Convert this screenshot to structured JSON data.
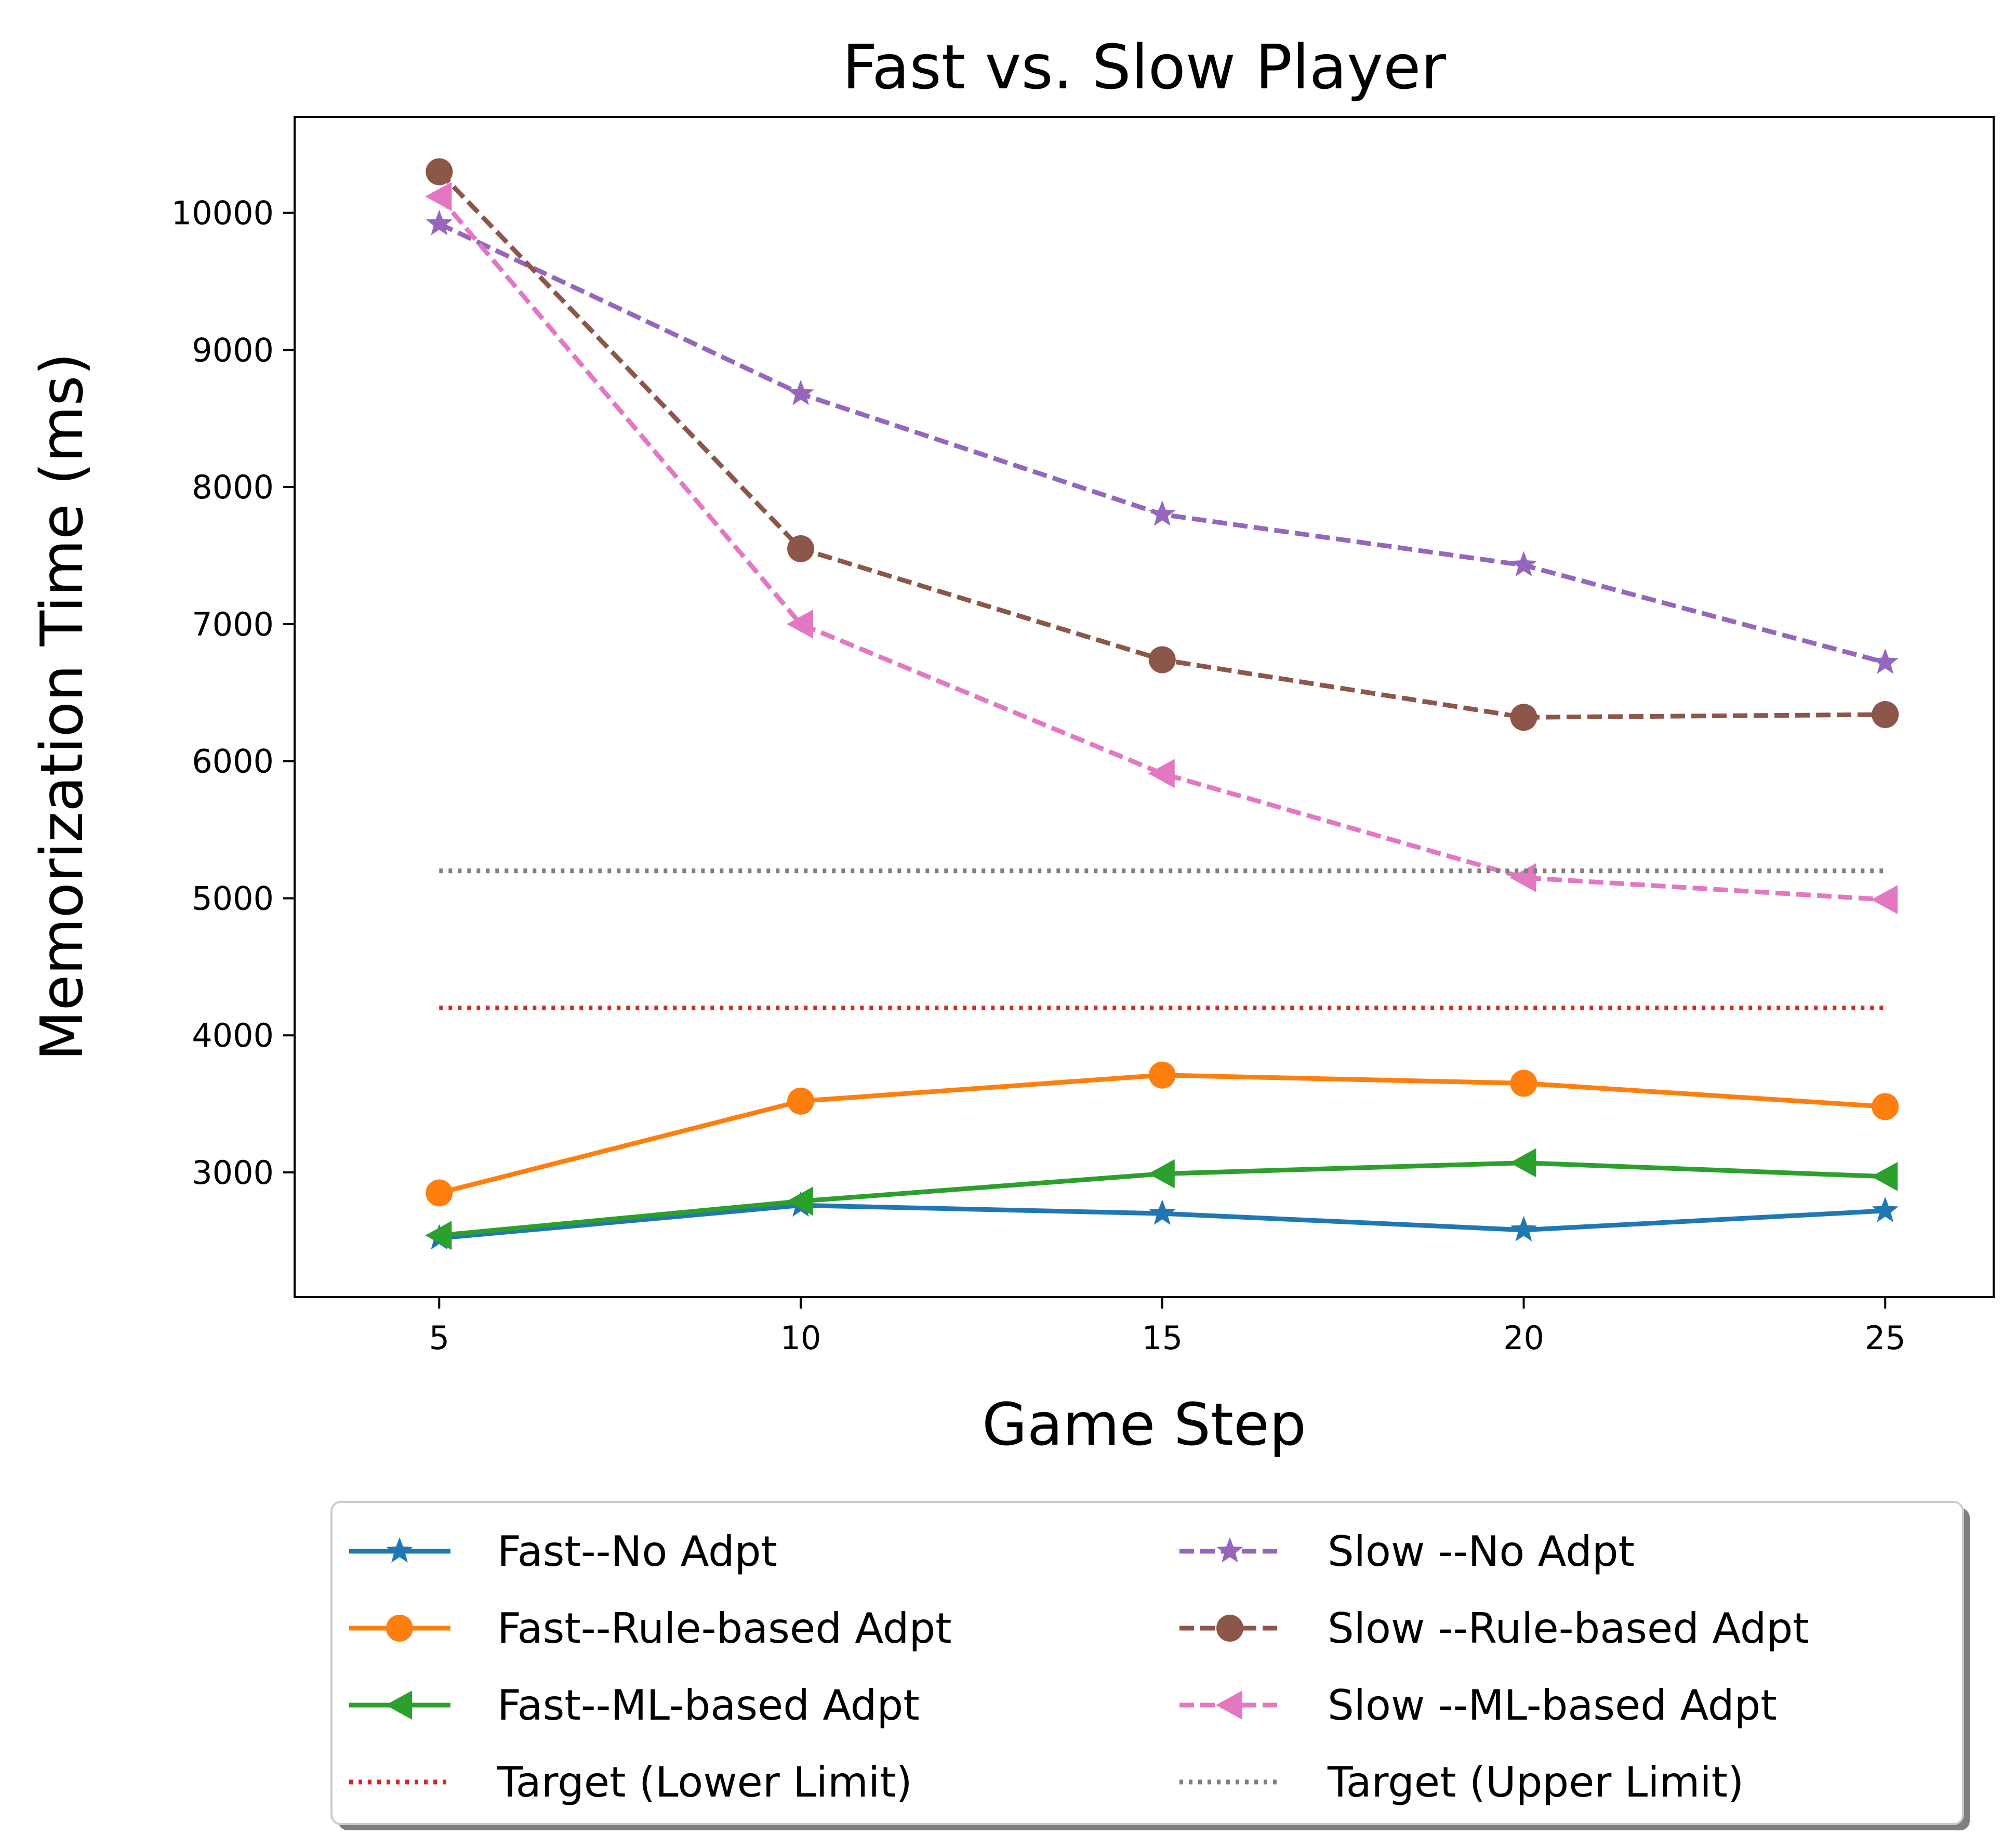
{
  "chart_data": {
    "type": "line",
    "title": "Fast vs. Slow Player",
    "xlabel": "Game Step",
    "ylabel": "Memorization Time (ms)",
    "xlim": [
      3,
      26.5
    ],
    "ylim": [
      2090,
      10700
    ],
    "x_ticks": [
      5,
      10,
      15,
      20,
      25
    ],
    "y_ticks": [
      3000,
      4000,
      5000,
      6000,
      7000,
      8000,
      9000,
      10000
    ],
    "grid": false,
    "legend_position": "below plot, two columns",
    "x": [
      5,
      10,
      15,
      20,
      25
    ],
    "series": [
      {
        "name": "Fast--No Adpt",
        "values": [
          2520,
          2760,
          2700,
          2580,
          2720
        ],
        "color": "#1f77b4",
        "dash": "solid",
        "marker": "star"
      },
      {
        "name": "Fast--Rule-based Adpt",
        "values": [
          2850,
          3520,
          3710,
          3650,
          3480
        ],
        "color": "#ff7f0e",
        "dash": "solid",
        "marker": "circle"
      },
      {
        "name": "Fast--ML-based Adpt",
        "values": [
          2540,
          2790,
          2990,
          3070,
          2970
        ],
        "color": "#2ca02c",
        "dash": "solid",
        "marker": "triangle-left"
      },
      {
        "name": "Target (Lower Limit)",
        "values": [
          4200,
          4200,
          4200,
          4200,
          4200
        ],
        "color": "#d62728",
        "dash": "dotted",
        "marker": "none"
      },
      {
        "name": "Slow --No Adpt",
        "values": [
          9920,
          8680,
          7800,
          7430,
          6720
        ],
        "color": "#9467bd",
        "dash": "dashed",
        "marker": "star"
      },
      {
        "name": "Slow --Rule-based Adpt",
        "values": [
          10300,
          7550,
          6740,
          6320,
          6340
        ],
        "color": "#8c564b",
        "dash": "dashed",
        "marker": "circle"
      },
      {
        "name": "Slow --ML-based Adpt",
        "values": [
          10120,
          7000,
          5910,
          5150,
          4990
        ],
        "color": "#e377c2",
        "dash": "dashed",
        "marker": "triangle-left"
      },
      {
        "name": "Target (Upper Limit)",
        "values": [
          5200,
          5200,
          5200,
          5200,
          5200
        ],
        "color": "#7f7f7f",
        "dash": "dotted",
        "marker": "none"
      }
    ]
  }
}
